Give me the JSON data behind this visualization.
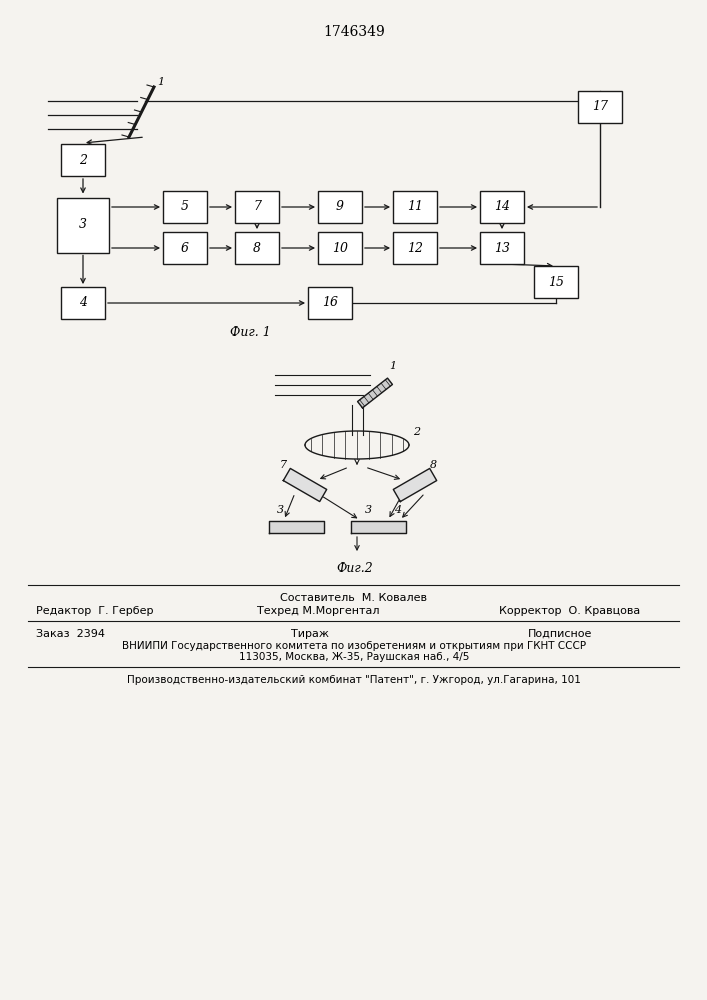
{
  "title": "1746349",
  "fig1_label": "Фиг. 1",
  "fig2_label": "Фиг.2",
  "background_color": "#f5f3ef",
  "box_color": "#ffffff",
  "line_color": "#1a1a1a",
  "footer_line1": "Составитель  М. Ковалев",
  "footer_line2_left": "Редактор  Г. Гербер",
  "footer_line2_mid": "Техред М.Моргентал",
  "footer_line2_right": "Корректор  О. Кравцова",
  "footer_line3_left": "Заказ  2394",
  "footer_line3_mid": "Тираж",
  "footer_line3_right": "Подписное",
  "footer_line4": "ВНИИПИ Государственного комитета по изобретениям и открытиям при ГКНТ СССР",
  "footer_line5": "113035, Москва, Ж-35, Раушская наб., 4/5",
  "footer_line6": "Производственно-издательский комбинат \"Патент\", г. Ужгород, ул.Гагарина, 101"
}
